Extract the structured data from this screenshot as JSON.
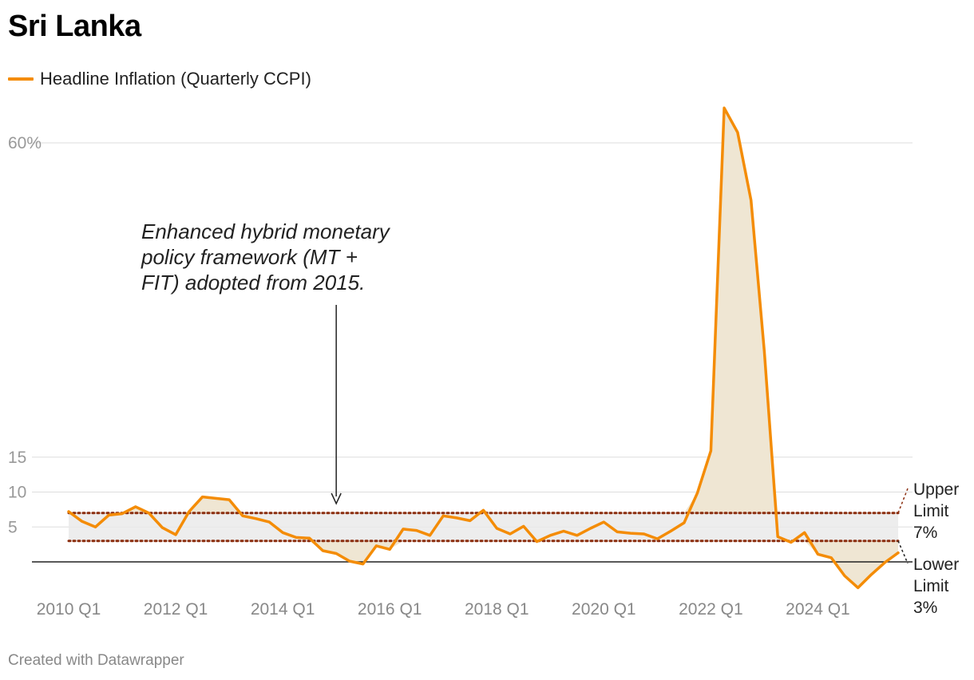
{
  "title": "Sri Lanka",
  "legend": {
    "label": "Headline Inflation (Quarterly CCPI)",
    "color": "#f48c06"
  },
  "footer": "Created with Datawrapper",
  "annotation": {
    "lines": [
      "Enhanced hybrid monetary",
      "policy framework (MT +",
      "FIT) adopted from 2015."
    ],
    "target_quarter": "2015 Q1"
  },
  "limits": {
    "upper": {
      "value": 7,
      "lines": [
        "Upper",
        "Limit",
        "7%"
      ]
    },
    "lower": {
      "value": 3,
      "lines": [
        "Lower",
        "Limit",
        "3%"
      ]
    }
  },
  "colors": {
    "line": "#f48c06",
    "band": "#e8e8e8",
    "excess_fill": "#efe6d3",
    "limit_line": "#8b2e0f",
    "grid": "#dddddd"
  },
  "chart_data": {
    "type": "line",
    "x_start": "2010 Q1",
    "x_tick_labels": [
      "2010 Q1",
      "2012 Q1",
      "2014 Q1",
      "2016 Q1",
      "2018 Q1",
      "2020 Q1",
      "2022 Q1",
      "2024 Q1"
    ],
    "y_ticks": [
      5,
      10,
      15,
      60
    ],
    "y_tick_labels": [
      "5",
      "10",
      "15",
      "60%"
    ],
    "ylim": [
      -4,
      65
    ],
    "grid": true,
    "legend_position": "top-left",
    "series": [
      {
        "name": "Headline Inflation (Quarterly CCPI)",
        "values": [
          7.2,
          5.8,
          5.0,
          6.7,
          6.9,
          7.9,
          7.0,
          4.9,
          3.9,
          7.2,
          9.3,
          9.1,
          8.9,
          6.6,
          6.2,
          5.7,
          4.2,
          3.5,
          3.4,
          1.6,
          1.2,
          0.1,
          -0.3,
          2.3,
          1.8,
          4.7,
          4.5,
          3.8,
          6.6,
          6.3,
          5.9,
          7.4,
          4.8,
          4.0,
          5.1,
          2.9,
          3.8,
          4.4,
          3.8,
          4.8,
          5.7,
          4.3,
          4.1,
          4.0,
          3.3,
          4.4,
          5.6,
          9.9,
          15.9,
          65.0,
          61.5,
          51.8,
          30.1,
          3.6,
          2.8,
          4.2,
          1.1,
          0.6,
          -2.0,
          -3.7,
          -1.8,
          -0.1,
          1.3
        ]
      }
    ]
  }
}
